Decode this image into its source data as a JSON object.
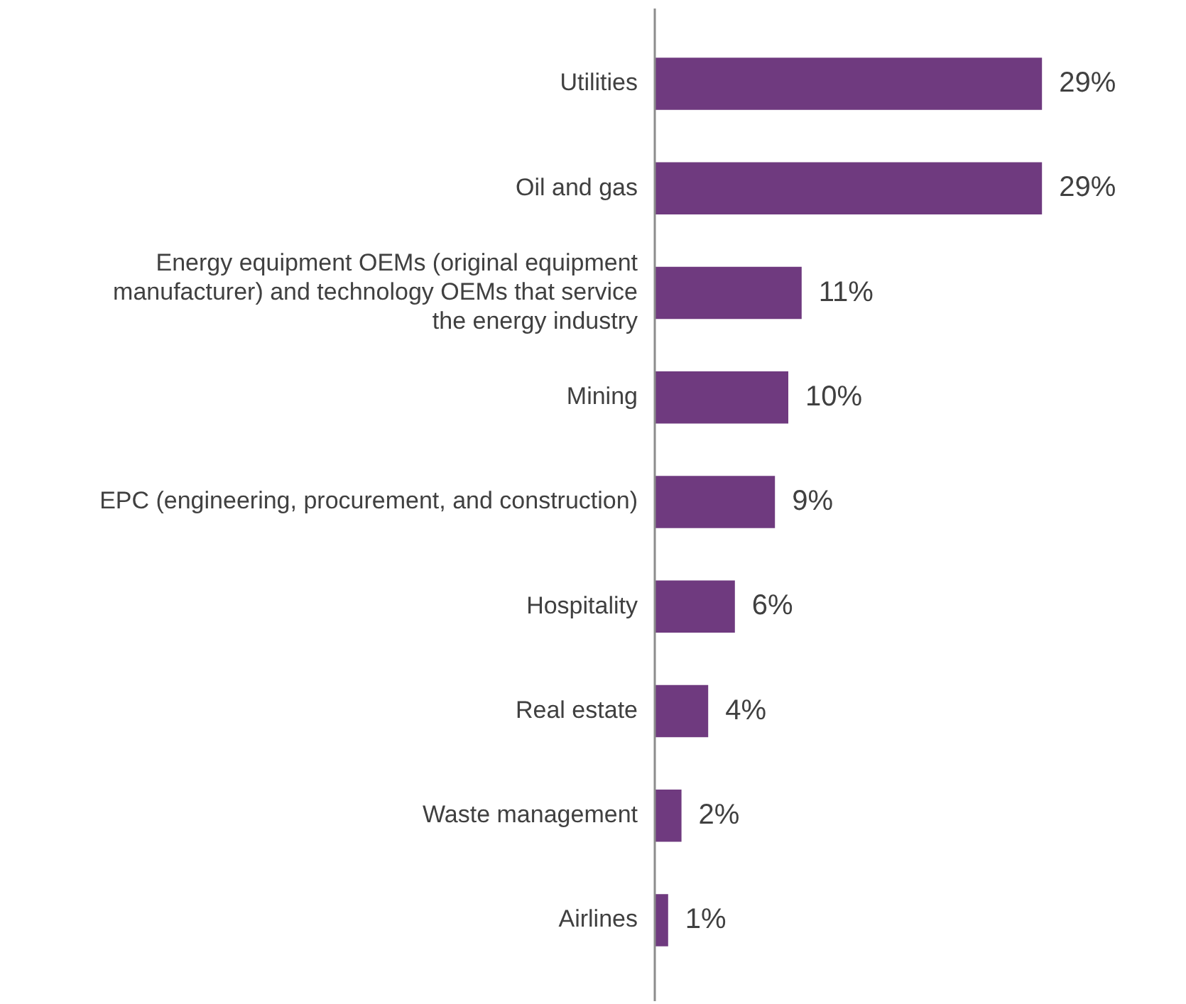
{
  "chart_data": {
    "type": "bar",
    "orientation": "horizontal",
    "categories": [
      "Utilities",
      "Oil and gas",
      "Energy equipment OEMs (original equipment manufacturer) and technology OEMs that service the energy industry",
      "Mining",
      "EPC (engineering, procurement, and construction)",
      "Hospitality",
      "Real estate",
      "Waste management",
      "Airlines"
    ],
    "values": [
      29,
      29,
      11,
      10,
      9,
      6,
      4,
      2,
      1
    ],
    "value_labels": [
      "29%",
      "29%",
      "11%",
      "10%",
      "9%",
      "6%",
      "4%",
      "2%",
      "1%"
    ],
    "color": "#6f3a7f",
    "grid": false,
    "legend": false,
    "tick_labels": "y"
  }
}
